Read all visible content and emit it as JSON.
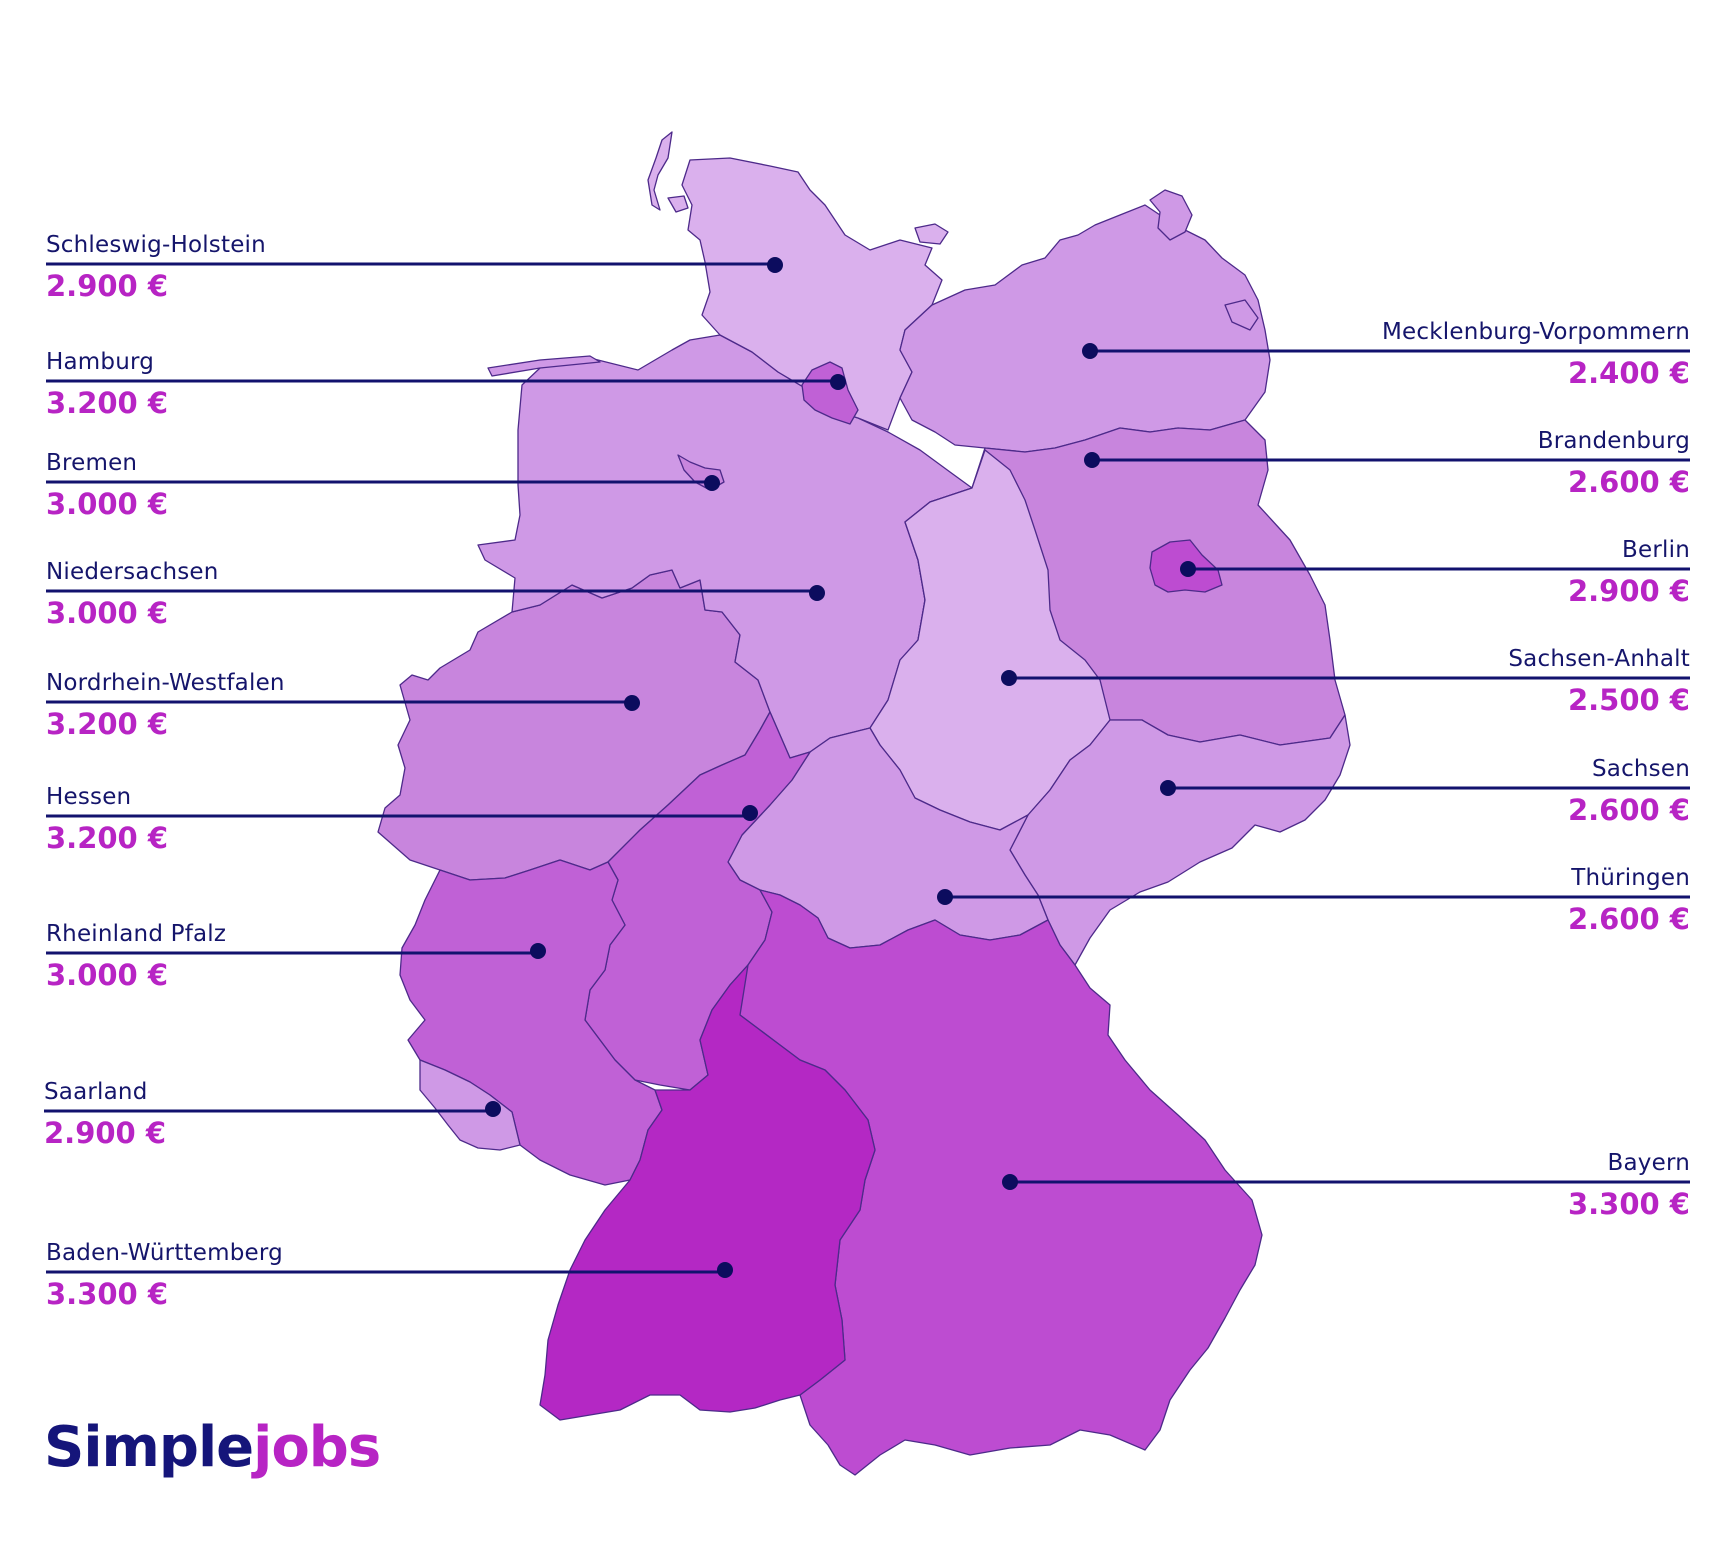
{
  "brand": {
    "part1": "Simple",
    "part2": "jobs"
  },
  "colors": {
    "shade1": "#dab0ed",
    "shade2": "#cf99e6",
    "shade3": "#c885dd",
    "shade4": "#c061d6",
    "shade5": "#bd4cd1",
    "shade6": "#b428c4",
    "leader": "#12126e",
    "name_text": "#15156b",
    "price_text": "#b724c4"
  },
  "states": [
    {
      "id": "schleswig-holstein",
      "name": "Schleswig-Holstein",
      "price": "2.900 €"
    },
    {
      "id": "hamburg",
      "name": "Hamburg",
      "price": "3.200 €"
    },
    {
      "id": "bremen",
      "name": "Bremen",
      "price": "3.000 €"
    },
    {
      "id": "niedersachsen",
      "name": "Niedersachsen",
      "price": "3.000 €"
    },
    {
      "id": "nordrhein-westfalen",
      "name": "Nordrhein-Westfalen",
      "price": "3.200 €"
    },
    {
      "id": "hessen",
      "name": "Hessen",
      "price": "3.200 €"
    },
    {
      "id": "rheinland-pfalz",
      "name": "Rheinland Pfalz",
      "price": "3.000 €"
    },
    {
      "id": "saarland",
      "name": "Saarland",
      "price": "2.900 €"
    },
    {
      "id": "baden-wuerttemberg",
      "name": "Baden-Württemberg",
      "price": "3.300 €"
    },
    {
      "id": "mecklenburg-vorpommern",
      "name": "Mecklenburg-Vorpommern",
      "price": "2.400 €"
    },
    {
      "id": "brandenburg",
      "name": "Brandenburg",
      "price": "2.600 €"
    },
    {
      "id": "berlin",
      "name": "Berlin",
      "price": "2.900 €"
    },
    {
      "id": "sachsen-anhalt",
      "name": "Sachsen-Anhalt",
      "price": "2.500 €"
    },
    {
      "id": "sachsen",
      "name": "Sachsen",
      "price": "2.600 €"
    },
    {
      "id": "thueringen",
      "name": "Thüringen",
      "price": "2.600 €"
    },
    {
      "id": "bayern",
      "name": "Bayern",
      "price": "3.300 €"
    }
  ]
}
